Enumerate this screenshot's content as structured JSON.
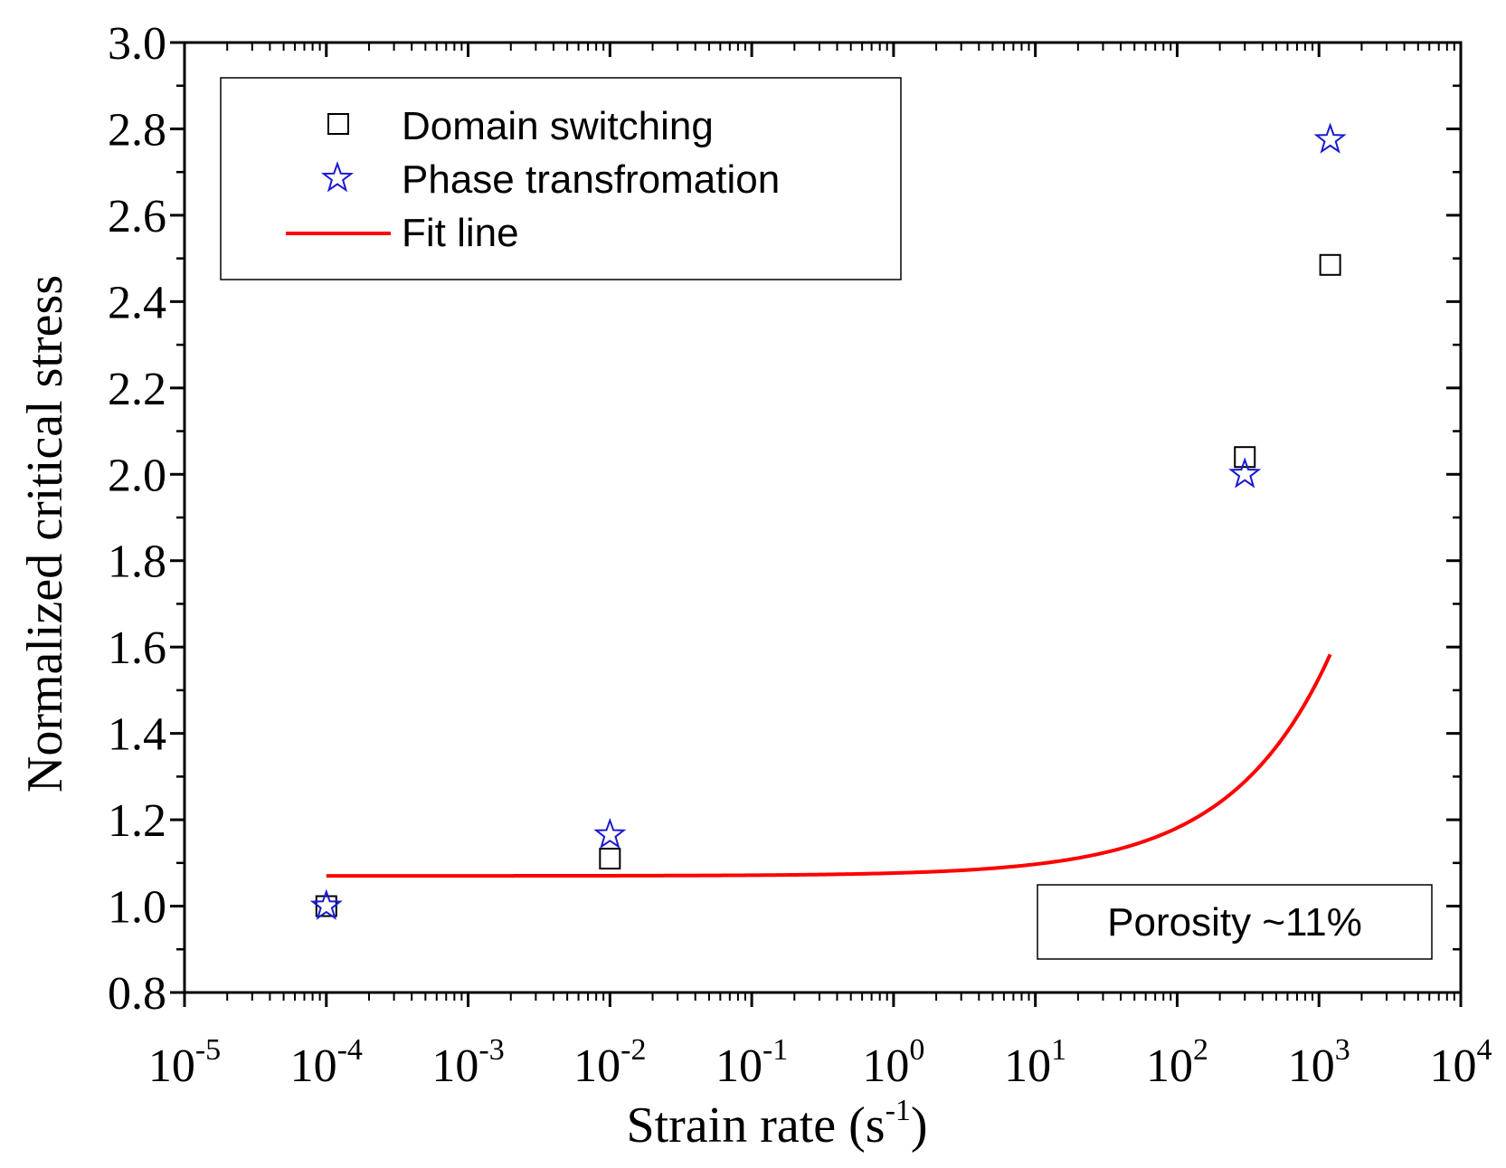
{
  "chart_data": {
    "type": "scatter",
    "title": "",
    "xlabel": "Strain rate (s",
    "xlabel_sup": "-1",
    "xlabel_close": ")",
    "ylabel": "Normalized critical stress",
    "xscale": "log",
    "xlim": [
      1e-05,
      10000
    ],
    "ylim": [
      0.8,
      3.0
    ],
    "x_ticks": [
      {
        "base": "10",
        "exp": "-5",
        "value": 1e-05
      },
      {
        "base": "10",
        "exp": "-4",
        "value": 0.0001
      },
      {
        "base": "10",
        "exp": "-3",
        "value": 0.001
      },
      {
        "base": "10",
        "exp": "-2",
        "value": 0.01
      },
      {
        "base": "10",
        "exp": "-1",
        "value": 0.1
      },
      {
        "base": "10",
        "exp": "0",
        "value": 1
      },
      {
        "base": "10",
        "exp": "1",
        "value": 10
      },
      {
        "base": "10",
        "exp": "2",
        "value": 100
      },
      {
        "base": "10",
        "exp": "3",
        "value": 1000
      },
      {
        "base": "10",
        "exp": "4",
        "value": 10000
      }
    ],
    "y_ticks": [
      "0.8",
      "1.0",
      "1.2",
      "1.4",
      "1.6",
      "1.8",
      "2.0",
      "2.2",
      "2.4",
      "2.6",
      "2.8",
      "3.0"
    ],
    "series": [
      {
        "name": "Domain switching",
        "marker": "square",
        "color": "#000000",
        "points": [
          {
            "x": 0.0001,
            "y": 1.0
          },
          {
            "x": 0.01,
            "y": 1.11
          },
          {
            "x": 300,
            "y": 2.04
          },
          {
            "x": 1200,
            "y": 2.485
          }
        ]
      },
      {
        "name": "Phase transfromation",
        "marker": "star",
        "color": "#1a1ad0",
        "points": [
          {
            "x": 0.0001,
            "y": 1.0
          },
          {
            "x": 0.01,
            "y": 1.165
          },
          {
            "x": 300,
            "y": 2.0
          },
          {
            "x": 1200,
            "y": 2.775
          }
        ]
      },
      {
        "name": "Fit line",
        "type": "line",
        "color": "#ff0000",
        "model": {
          "base": 1.07,
          "coef": 0.00655,
          "exponent": 0.615
        },
        "x_range": [
          0.0001,
          1200
        ]
      }
    ],
    "legend": {
      "position": "top-left"
    },
    "annotation": "Porosity ~11%"
  }
}
